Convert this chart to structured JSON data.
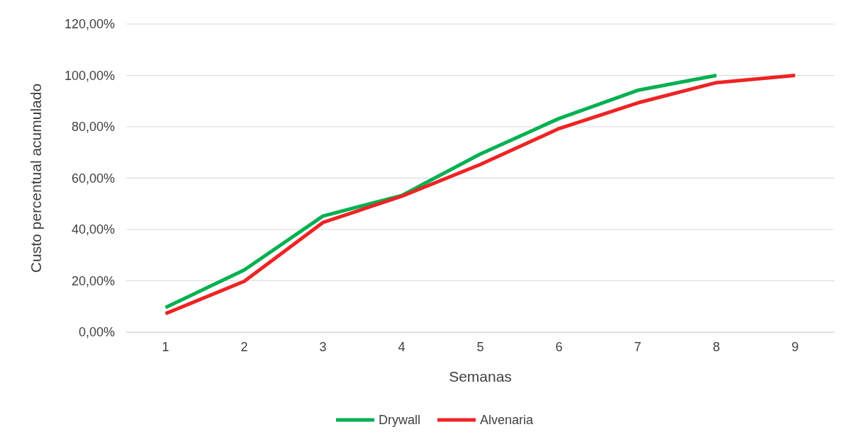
{
  "chart_data": {
    "type": "line",
    "xlabel": "Semanas",
    "ylabel": "Custo percentual acumulado",
    "categories": [
      "1",
      "2",
      "3",
      "4",
      "5",
      "6",
      "7",
      "8",
      "9"
    ],
    "series": [
      {
        "name": "Drywall",
        "color": "#00b050",
        "values": [
          9.6,
          24.2,
          45.2,
          53.2,
          69.4,
          83.2,
          94.2,
          100,
          null
        ]
      },
      {
        "name": "Alvenaria",
        "color": "#ee2324",
        "values": [
          7.2,
          19.8,
          42.7,
          52.9,
          65.3,
          79.3,
          89.3,
          97.2,
          100
        ]
      }
    ],
    "ylim": [
      0,
      120
    ],
    "yticks": [
      {
        "value": 0,
        "label": "0,00%"
      },
      {
        "value": 20,
        "label": "20,00%"
      },
      {
        "value": 40,
        "label": "40,00%"
      },
      {
        "value": 60,
        "label": "60,00%"
      },
      {
        "value": 80,
        "label": "80,00%"
      },
      {
        "value": 100,
        "label": "100,00%"
      },
      {
        "value": 120,
        "label": "120,00%"
      }
    ],
    "grid": "y",
    "legend": "bottom",
    "marker": "none",
    "line_style": "solid"
  }
}
